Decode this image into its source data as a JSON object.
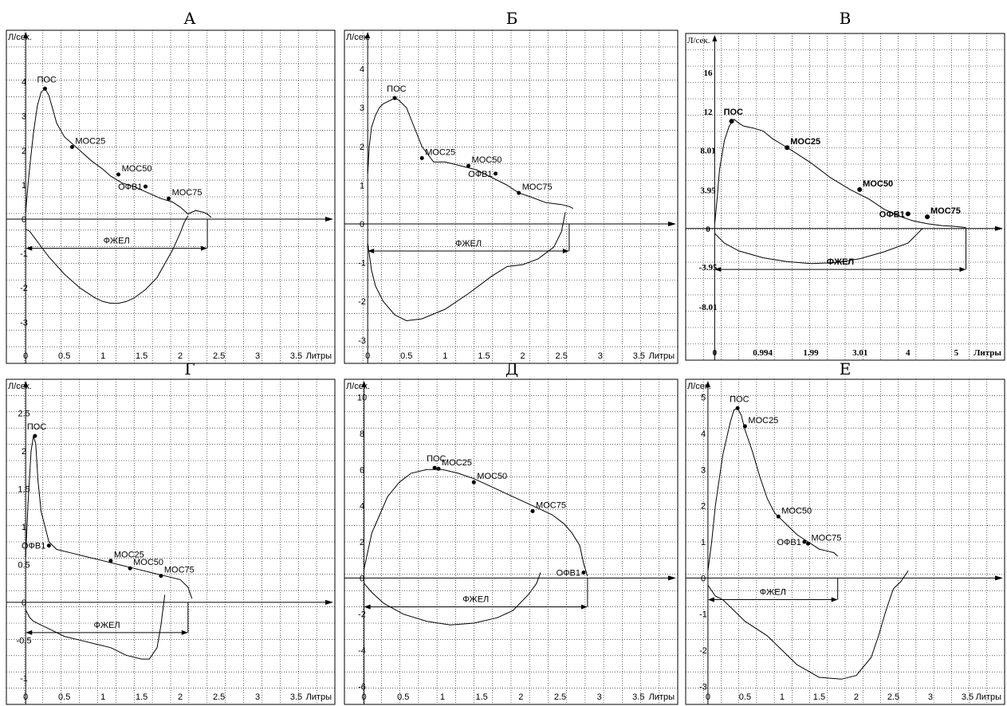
{
  "figure_titles": [
    "А",
    "Б",
    "В",
    "Г",
    "Д",
    "Е"
  ],
  "chart_data": [
    {
      "type": "line",
      "title": "А",
      "ylabel": "Л/сек.",
      "xlabel": "Литры",
      "xlim": [
        -0.25,
        4.0
      ],
      "ylim": [
        -4.2,
        5.5
      ],
      "xticks": [
        0,
        0.5,
        1,
        1.5,
        2,
        2.5,
        3,
        3.5
      ],
      "xtick_labels": [
        "0",
        "0.5",
        "1",
        "1.5",
        "2",
        "2.5",
        "3",
        "3.5"
      ],
      "yticks": [
        4,
        3,
        2,
        1,
        0,
        -1,
        -2,
        -3
      ],
      "ytick_labels": [
        "4",
        "3",
        "2",
        "1",
        "0",
        "-1",
        "-2",
        "-3"
      ],
      "grid": true,
      "series": [
        {
          "role": "expiration",
          "x": [
            0,
            0.03,
            0.06,
            0.1,
            0.15,
            0.2,
            0.25,
            0.3,
            0.35,
            0.4,
            0.5,
            0.6,
            0.7,
            0.85,
            1.0,
            1.1,
            1.25,
            1.4,
            1.5,
            1.6,
            1.75,
            1.9,
            2.0,
            2.05,
            2.1,
            2.2,
            2.3,
            2.35,
            2.4
          ],
          "y": [
            0.2,
            1.0,
            1.7,
            2.5,
            3.3,
            3.7,
            3.8,
            3.6,
            3.2,
            2.8,
            2.4,
            2.2,
            2.0,
            1.7,
            1.45,
            1.25,
            1.05,
            0.95,
            0.85,
            0.75,
            0.6,
            0.5,
            0.35,
            0.25,
            0.15,
            0.25,
            0.2,
            0.15,
            0.05
          ]
        },
        {
          "role": "inspiration",
          "x": [
            0,
            0.05,
            0.1,
            0.2,
            0.3,
            0.5,
            0.7,
            0.9,
            1.0,
            1.1,
            1.2,
            1.3,
            1.4,
            1.55,
            1.7,
            1.8,
            1.9,
            2.0,
            2.05,
            2.1
          ],
          "y": [
            -0.3,
            -0.35,
            -0.5,
            -0.8,
            -1.1,
            -1.6,
            -2.0,
            -2.3,
            -2.4,
            -2.45,
            -2.45,
            -2.4,
            -2.3,
            -2.05,
            -1.7,
            -1.3,
            -0.9,
            -0.4,
            -0.1,
            0.1
          ]
        }
      ],
      "points": [
        {
          "label": "ПОС",
          "x": 0.25,
          "y": 3.8
        },
        {
          "label": "МОС25",
          "x": 0.6,
          "y": 2.1
        },
        {
          "label": "МОС50",
          "x": 1.2,
          "y": 1.3
        },
        {
          "label": "ОФВ1",
          "x": 1.55,
          "y": 0.95
        },
        {
          "label": "МОС75",
          "x": 1.85,
          "y": 0.6
        }
      ],
      "fvc": {
        "label": "ФЖЕЛ",
        "x0": 0,
        "x1": 2.35,
        "y": -0.85
      },
      "ofv1_label": "ОФВ1"
    },
    {
      "type": "line",
      "title": "Б",
      "ylabel": "Л/сек.",
      "xlabel": "Литры",
      "xlim": [
        -0.3,
        4.0
      ],
      "ylim": [
        -3.6,
        5.0
      ],
      "xticks": [
        0,
        0.5,
        1,
        1.5,
        2,
        2.5,
        3,
        3.5
      ],
      "xtick_labels": [
        "0",
        "0.5",
        "1",
        "1.5",
        "2",
        "2.5",
        "3",
        "3.5"
      ],
      "yticks": [
        4,
        3,
        2,
        1,
        0,
        -1,
        -2,
        -3
      ],
      "ytick_labels": [
        "4",
        "3",
        "2",
        "1",
        "0",
        "-1",
        "-2",
        "-3"
      ],
      "grid": true,
      "series": [
        {
          "role": "expiration",
          "x": [
            0,
            0.02,
            0.05,
            0.1,
            0.15,
            0.2,
            0.3,
            0.35,
            0.4,
            0.5,
            0.6,
            0.7,
            0.85,
            1.0,
            1.2,
            1.4,
            1.6,
            1.8,
            1.95,
            2.1,
            2.3,
            2.5,
            2.6,
            2.65
          ],
          "y": [
            1.3,
            2.0,
            2.5,
            2.8,
            3.0,
            3.1,
            3.2,
            3.25,
            3.2,
            3.0,
            2.5,
            2.0,
            1.6,
            1.6,
            1.5,
            1.4,
            1.2,
            1.0,
            0.8,
            0.7,
            0.55,
            0.5,
            0.45,
            0.4
          ]
        },
        {
          "role": "inspiration",
          "x": [
            0,
            0.05,
            0.1,
            0.2,
            0.35,
            0.5,
            0.7,
            1.0,
            1.3,
            1.6,
            1.8,
            2.0,
            2.2,
            2.4,
            2.5,
            2.55
          ],
          "y": [
            -0.5,
            -1.2,
            -1.6,
            -2.0,
            -2.35,
            -2.5,
            -2.45,
            -2.2,
            -1.8,
            -1.35,
            -1.1,
            -1.05,
            -0.9,
            -0.6,
            -0.2,
            0.3
          ]
        }
      ],
      "points": [
        {
          "label": "ПОС",
          "x": 0.35,
          "y": 3.25
        },
        {
          "label": "МОС25",
          "x": 0.7,
          "y": 1.7
        },
        {
          "label": "МОС50",
          "x": 1.3,
          "y": 1.5
        },
        {
          "label": "ОФВ1",
          "x": 1.65,
          "y": 1.3
        },
        {
          "label": "МОС75",
          "x": 1.95,
          "y": 0.8
        }
      ],
      "fvc": {
        "label": "ФЖЕЛ",
        "x0": 0,
        "x1": 2.6,
        "y": -0.7
      },
      "ofv1_label": "ОФВ1"
    },
    {
      "type": "line",
      "title": "В",
      "ylabel": "Л/сек.",
      "xlabel": "Литры",
      "xlim": [
        -0.6,
        6.0
      ],
      "ylim": [
        -13.5,
        20.0
      ],
      "xticks": [
        0,
        0.994,
        1.99,
        3.01,
        4,
        5
      ],
      "xtick_labels": [
        "0",
        "0.994",
        "1.99",
        "3.01",
        "4",
        "5"
      ],
      "yticks": [
        16,
        12,
        8.01,
        3.95,
        0,
        -3.95,
        -8.01
      ],
      "ytick_labels": [
        "16",
        "12",
        "8.01",
        "3.95",
        "0",
        "-3.95",
        "-8.01"
      ],
      "grid": true,
      "series": [
        {
          "role": "expiration",
          "x": [
            0,
            0.05,
            0.1,
            0.2,
            0.3,
            0.4,
            0.5,
            0.6,
            0.8,
            1.0,
            1.2,
            1.4,
            1.6,
            2.0,
            2.4,
            2.8,
            3.2,
            3.5,
            3.8,
            4.1,
            4.4,
            4.7,
            5.0,
            5.2
          ],
          "y": [
            0.5,
            3.0,
            6.0,
            9.0,
            10.5,
            11.2,
            10.8,
            10.5,
            10.3,
            10.0,
            9.2,
            8.6,
            8.0,
            6.7,
            5.2,
            4.0,
            3.0,
            2.0,
            1.3,
            0.8,
            0.5,
            0.3,
            0.2,
            0.1
          ]
        },
        {
          "role": "inspiration",
          "x": [
            0,
            0.2,
            0.5,
            1.0,
            1.5,
            2.0,
            2.5,
            3.0,
            3.5,
            4.0,
            4.3
          ],
          "y": [
            -0.5,
            -1.5,
            -2.3,
            -3.0,
            -3.4,
            -3.6,
            -3.5,
            -3.1,
            -2.4,
            -1.5,
            0.0
          ]
        }
      ],
      "points": [
        {
          "label": "ПОС",
          "x": 0.35,
          "y": 11.0
        },
        {
          "label": "МОС25",
          "x": 1.5,
          "y": 8.3
        },
        {
          "label": "МОС50",
          "x": 3.0,
          "y": 4.0
        },
        {
          "label": "ОФВ1",
          "x": 4.0,
          "y": 1.5
        },
        {
          "label": "МОС75",
          "x": 4.4,
          "y": 1.2
        }
      ],
      "fvc": {
        "label": "ФЖЕЛ",
        "x0": 0,
        "x1": 5.2,
        "y": -4.2
      },
      "ofv1_label": "ОФВ1"
    },
    {
      "type": "line",
      "title": "Г",
      "ylabel": "Л/сек.",
      "xlabel": "Литры",
      "xlim": [
        -0.25,
        4.0
      ],
      "ylim": [
        -1.35,
        2.95
      ],
      "xticks": [
        0,
        0.5,
        1,
        1.5,
        2,
        2.5,
        3,
        3.5
      ],
      "xtick_labels": [
        "0",
        "0.5",
        "1",
        "1.5",
        "2",
        "2.5",
        "3",
        "3.5"
      ],
      "yticks": [
        2.5,
        2,
        1.5,
        1,
        0.5,
        0,
        -0.5,
        -1
      ],
      "ytick_labels": [
        "2.5",
        "2",
        "1.5",
        "1",
        "0.5",
        "0",
        "-0.5",
        "-1"
      ],
      "grid": true,
      "series": [
        {
          "role": "expiration",
          "x": [
            0,
            0.03,
            0.07,
            0.1,
            0.13,
            0.16,
            0.2,
            0.25,
            0.3,
            0.4,
            0.6,
            0.8,
            1.0,
            1.2,
            1.4,
            1.6,
            1.8,
            2.0,
            2.1,
            2.15
          ],
          "y": [
            0.6,
            1.3,
            2.0,
            2.2,
            2.1,
            1.6,
            1.2,
            1.0,
            0.8,
            0.7,
            0.65,
            0.6,
            0.55,
            0.5,
            0.45,
            0.4,
            0.35,
            0.3,
            0.2,
            0.05
          ]
        },
        {
          "role": "inspiration",
          "x": [
            0,
            0.05,
            0.1,
            0.2,
            0.3,
            0.5,
            0.7,
            0.9,
            1.1,
            1.3,
            1.5,
            1.6,
            1.7,
            1.75,
            1.8
          ],
          "y": [
            -0.1,
            -0.2,
            -0.25,
            -0.3,
            -0.35,
            -0.45,
            -0.5,
            -0.55,
            -0.6,
            -0.7,
            -0.75,
            -0.75,
            -0.6,
            -0.3,
            0.1
          ]
        }
      ],
      "points": [
        {
          "label": "ПОС",
          "x": 0.12,
          "y": 2.2
        },
        {
          "label": "ОФВ1",
          "x": 0.3,
          "y": 0.75
        },
        {
          "label": "МОС25",
          "x": 1.1,
          "y": 0.55
        },
        {
          "label": "МОС50",
          "x": 1.35,
          "y": 0.45
        },
        {
          "label": "МОС75",
          "x": 1.75,
          "y": 0.35
        }
      ],
      "fvc": {
        "label": "ФЖЕЛ",
        "x0": 0,
        "x1": 2.1,
        "y": -0.4
      },
      "ofv1_label": "ОФВ1"
    },
    {
      "type": "line",
      "title": "Д",
      "ylabel": "Л/сек.",
      "xlabel": "Литры",
      "xlim": [
        -0.25,
        4.0
      ],
      "ylim": [
        -7.0,
        11.0
      ],
      "xticks": [
        0,
        0.5,
        1,
        1.5,
        2,
        2.5,
        3,
        3.5
      ],
      "xtick_labels": [
        "0",
        "0.5",
        "1",
        "1.5",
        "2",
        "2.5",
        "3",
        "3.5"
      ],
      "yticks": [
        10,
        8,
        6,
        4,
        2,
        0,
        -2,
        -4,
        -6
      ],
      "ytick_labels": [
        "10",
        "8",
        "6",
        "4",
        "2",
        "0",
        "-2",
        "-4",
        "-6"
      ],
      "grid": true,
      "series": [
        {
          "role": "expiration",
          "x": [
            0,
            0.05,
            0.1,
            0.2,
            0.3,
            0.45,
            0.6,
            0.8,
            1.0,
            1.2,
            1.4,
            1.6,
            1.8,
            2.0,
            2.2,
            2.4,
            2.55,
            2.65,
            2.75,
            2.8,
            2.85
          ],
          "y": [
            0.5,
            1.5,
            2.5,
            3.5,
            4.5,
            5.3,
            5.8,
            6.0,
            6.0,
            5.8,
            5.5,
            5.1,
            4.7,
            4.3,
            3.9,
            3.5,
            3.0,
            2.5,
            1.8,
            0.8,
            0.1
          ]
        },
        {
          "role": "inspiration",
          "x": [
            0,
            0.1,
            0.25,
            0.5,
            0.8,
            1.1,
            1.4,
            1.7,
            1.9,
            2.1,
            2.2,
            2.25
          ],
          "y": [
            -0.3,
            -0.8,
            -1.4,
            -2.0,
            -2.4,
            -2.6,
            -2.5,
            -2.2,
            -1.8,
            -0.9,
            -0.3,
            0.3
          ]
        }
      ],
      "points": [
        {
          "label": "ПОС",
          "x": 0.9,
          "y": 6.1
        },
        {
          "label": "МОС25",
          "x": 0.95,
          "y": 6.05
        },
        {
          "label": "МОС50",
          "x": 1.4,
          "y": 5.3
        },
        {
          "label": "МОС75",
          "x": 2.15,
          "y": 3.7
        },
        {
          "label": "ОФВ1",
          "x": 2.8,
          "y": 0.3
        }
      ],
      "fvc": {
        "label": "ФЖЕЛ",
        "x0": 0,
        "x1": 2.85,
        "y": -1.6
      },
      "ofv1_label": "ОФВ1"
    },
    {
      "type": "line",
      "title": "Е",
      "ylabel": "Л/сек.",
      "xlabel": "Литры",
      "xlim": [
        -0.3,
        4.0
      ],
      "ylim": [
        -3.5,
        5.5
      ],
      "xticks": [
        0,
        0.5,
        1,
        1.5,
        2,
        2.5,
        3,
        3.5
      ],
      "xtick_labels": [
        "0",
        "0.5",
        "1",
        "1.5",
        "2",
        "2.5",
        "3",
        "3.5"
      ],
      "yticks": [
        5,
        4,
        3,
        2,
        1,
        0,
        -1,
        -2,
        -3
      ],
      "ytick_labels": [
        "5",
        "4",
        "3",
        "2",
        "1",
        "0",
        "-1",
        "-2",
        "-3"
      ],
      "grid": true,
      "series": [
        {
          "role": "expiration",
          "x": [
            0,
            0.05,
            0.1,
            0.2,
            0.3,
            0.35,
            0.4,
            0.45,
            0.5,
            0.6,
            0.7,
            0.8,
            0.9,
            1.0,
            1.1,
            1.2,
            1.35,
            1.5,
            1.6,
            1.7,
            1.75
          ],
          "y": [
            0.2,
            1.0,
            2.0,
            3.4,
            4.3,
            4.65,
            4.7,
            4.5,
            4.1,
            3.5,
            2.8,
            2.2,
            1.8,
            1.6,
            1.4,
            1.2,
            1.0,
            0.8,
            0.75,
            0.7,
            0.6
          ]
        },
        {
          "role": "inspiration",
          "x": [
            0,
            0.1,
            0.2,
            0.35,
            0.5,
            0.8,
            1.0,
            1.2,
            1.5,
            1.8,
            2.0,
            2.2,
            2.3,
            2.4,
            2.5,
            2.6,
            2.7
          ],
          "y": [
            -0.2,
            -0.5,
            -0.6,
            -0.9,
            -1.2,
            -1.6,
            -2.0,
            -2.4,
            -2.75,
            -2.8,
            -2.7,
            -2.2,
            -1.6,
            -0.9,
            -0.3,
            -0.1,
            0.2
          ]
        }
      ],
      "points": [
        {
          "label": "ПОС",
          "x": 0.4,
          "y": 4.7
        },
        {
          "label": "МОС25",
          "x": 0.5,
          "y": 4.2
        },
        {
          "label": "МОС50",
          "x": 0.95,
          "y": 1.7
        },
        {
          "label": "ОФВ1",
          "x": 1.3,
          "y": 1.0
        },
        {
          "label": "МОС75",
          "x": 1.35,
          "y": 0.95
        }
      ],
      "fvc": {
        "label": "ФЖЕЛ",
        "x0": 0,
        "x1": 1.75,
        "y": -0.6
      },
      "ofv1_label": "ОФВ1"
    }
  ]
}
